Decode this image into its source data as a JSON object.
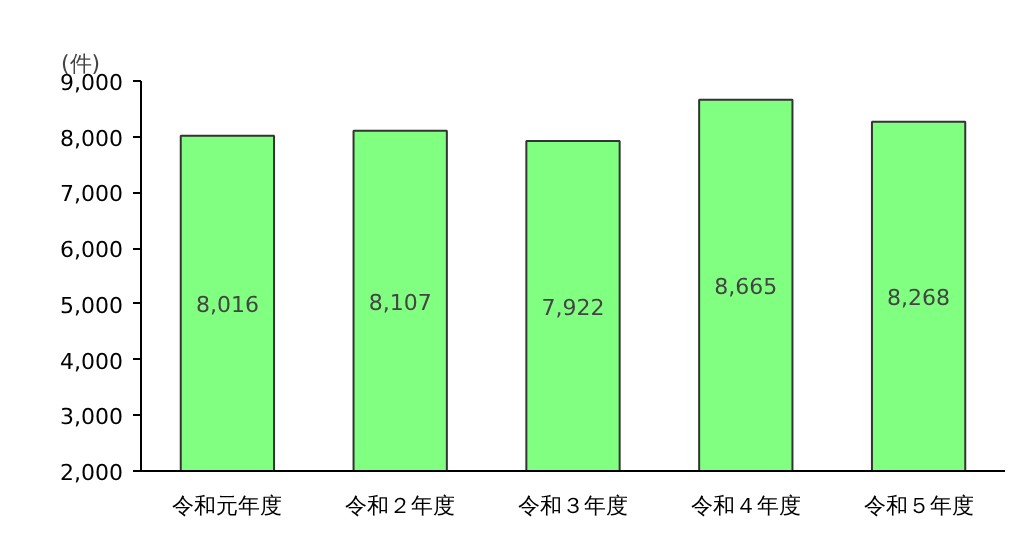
{
  "chart_data": {
    "type": "bar",
    "ylabel": "(件)",
    "categories": [
      "令和元年度",
      "令和２年度",
      "令和３年度",
      "令和４年度",
      "令和５年度"
    ],
    "values": [
      8016,
      8107,
      7922,
      8665,
      8268
    ],
    "color": "#80ff80",
    "ylim": [
      2000,
      9000
    ],
    "yticks": [
      {
        "value": 2000,
        "label": "2,000"
      },
      {
        "value": 3000,
        "label": "3,000"
      },
      {
        "value": 4000,
        "label": "4,000"
      },
      {
        "value": 5000,
        "label": "5,000"
      },
      {
        "value": 6000,
        "label": "6,000"
      },
      {
        "value": 7000,
        "label": "7,000"
      },
      {
        "value": 8000,
        "label": "8,000"
      },
      {
        "value": 9000,
        "label": "9,000"
      }
    ],
    "value_labels": [
      "8,016",
      "8,107",
      "7,922",
      "8,665",
      "8,268"
    ],
    "grid": false
  }
}
